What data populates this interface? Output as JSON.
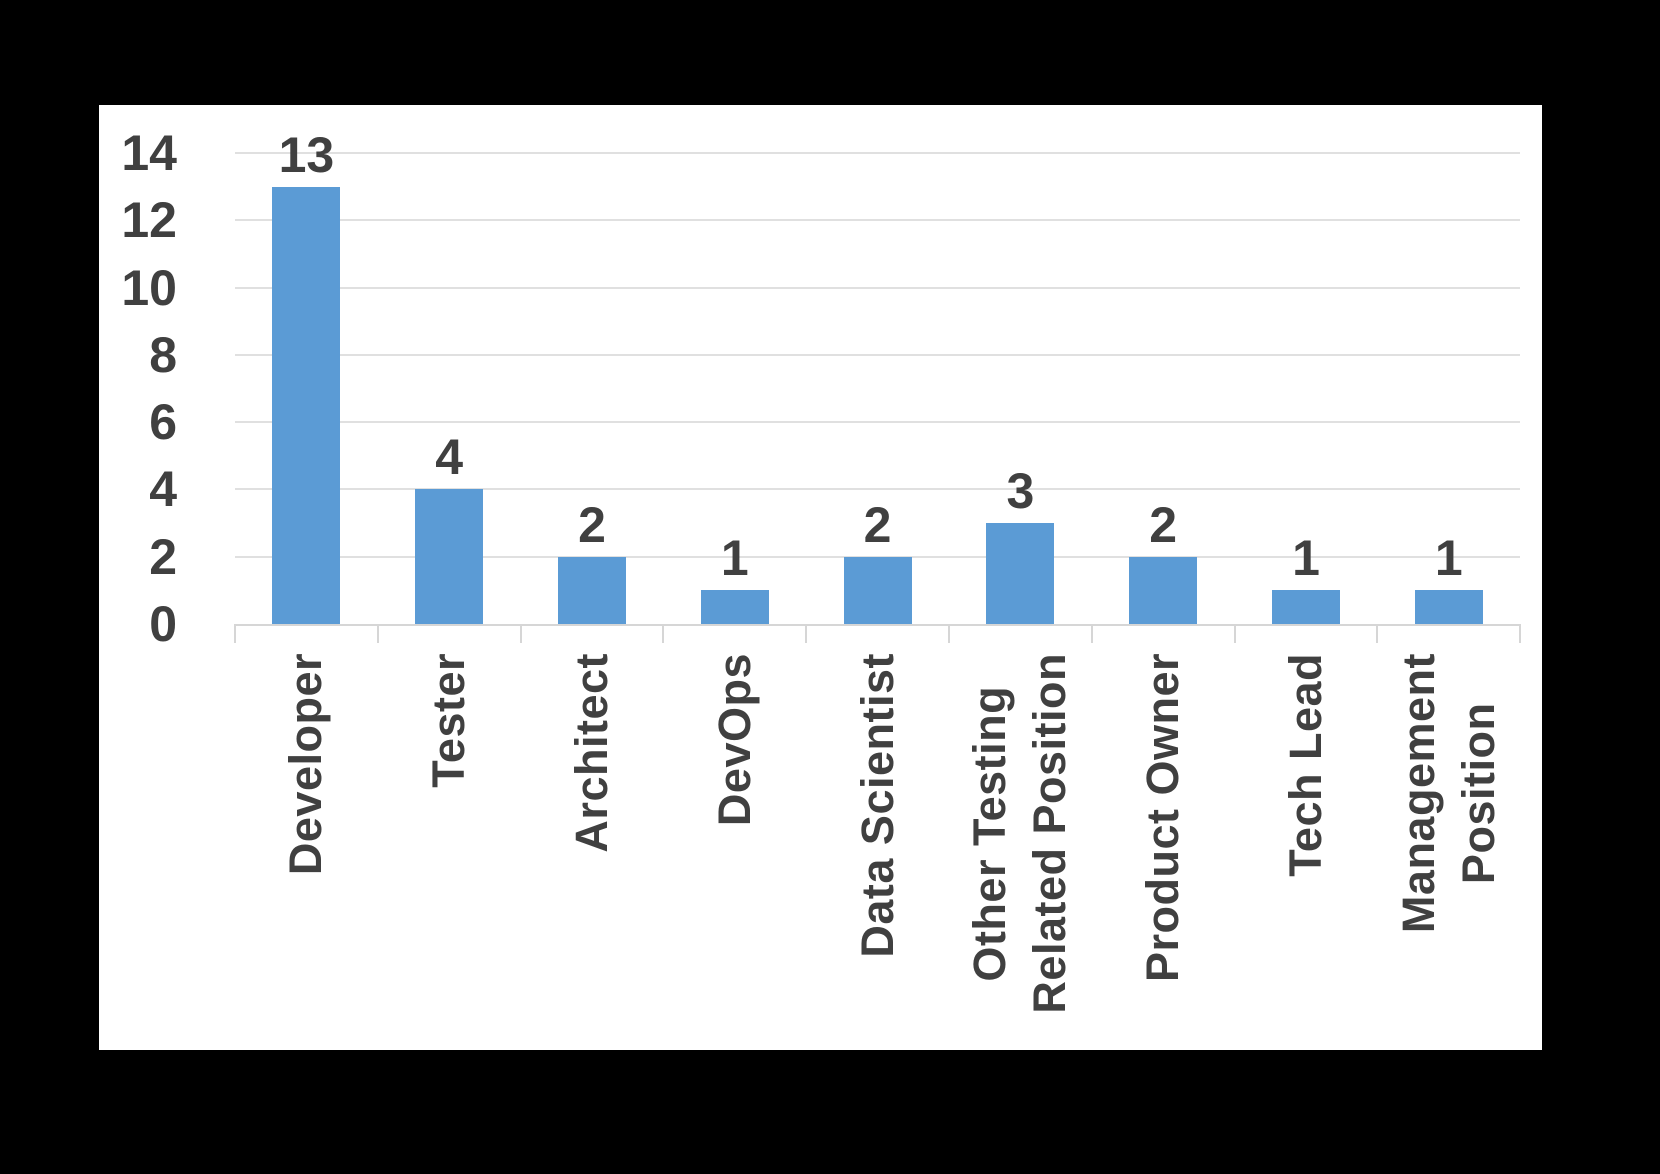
{
  "chart_data": {
    "type": "bar",
    "categories": [
      "Developer",
      "Tester",
      "Architect",
      "DevOps",
      "Data Scientist",
      "Other Testing\nRelated Position",
      "Product Owner",
      "Tech Lead",
      "Management\nPosition"
    ],
    "values": [
      13,
      4,
      2,
      1,
      2,
      3,
      2,
      1,
      1
    ],
    "data_labels": [
      "13",
      "4",
      "2",
      "1",
      "2",
      "3",
      "2",
      "1",
      "1"
    ],
    "title": "",
    "xlabel": "",
    "ylabel": "",
    "ylim": [
      0,
      14
    ],
    "yticks": [
      0,
      2,
      4,
      6,
      8,
      10,
      12,
      14
    ],
    "grid": true,
    "legend": false,
    "bar_orientation": "vertical",
    "category_label_rotation_deg": 90
  },
  "colors": {
    "bar": "#5B9BD5",
    "text": "#404040",
    "gridline": "#E0E0E0",
    "axis_line": "#D6D6D6",
    "chart_background": "#FFFFFF",
    "page_background": "#000000"
  }
}
